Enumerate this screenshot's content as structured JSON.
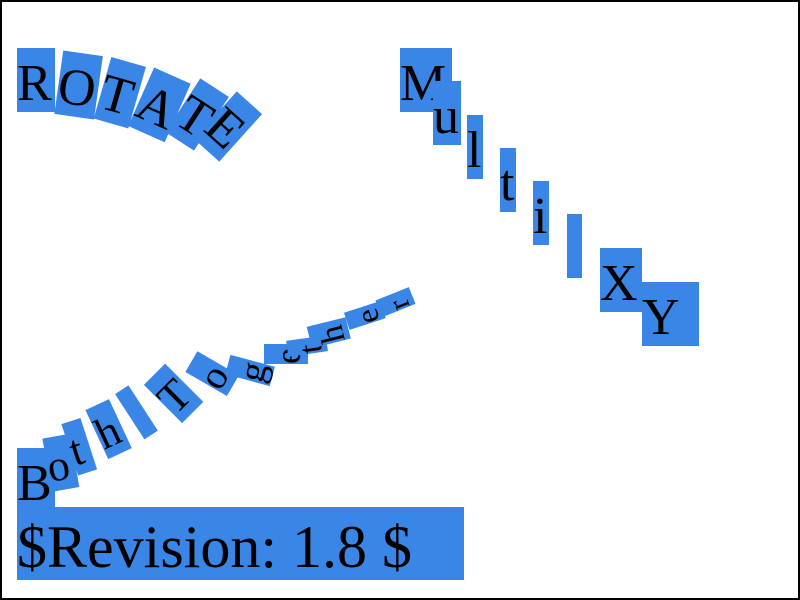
{
  "colors": {
    "highlight": "#3a86e6",
    "text": "#000000",
    "border": "#000000",
    "background": "#ffffff"
  },
  "rotate_glyphs": [
    "R",
    "O",
    "T",
    "A",
    "T",
    "E"
  ],
  "multi_glyphs": [
    "M",
    "u",
    "l",
    "t",
    "i",
    " ",
    "X",
    "Y"
  ],
  "both_glyphs": [
    "B",
    "o",
    "t",
    "h",
    " ",
    "T",
    "o",
    "g",
    "e",
    "t",
    "h",
    "e",
    "r"
  ],
  "revision_text": "$Revision: 1.8 $"
}
